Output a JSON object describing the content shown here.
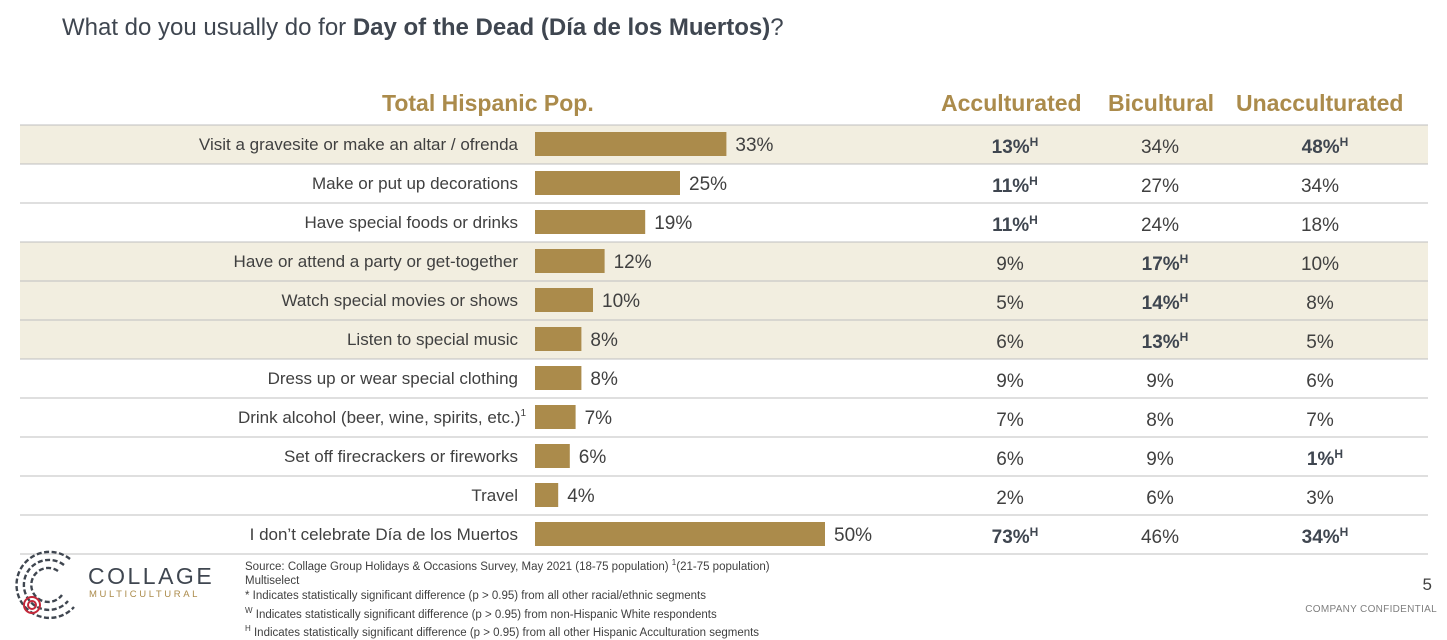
{
  "title": {
    "prefix": "What do you usually do for ",
    "bold": "Day of the Dead (Día de los Muertos)",
    "suffix": "?"
  },
  "headers": {
    "total": "Total Hispanic Pop.",
    "acc": "Acculturated",
    "bic": "Bicultural",
    "unacc": "Unacculturated"
  },
  "colors": {
    "bar": "#ab8b4b",
    "shade": "#f2eee0",
    "gold": "#ab8b4b",
    "text": "#404040",
    "dark": "#3f4650",
    "line": "#bfbfbf"
  },
  "chart_data": {
    "type": "bar",
    "orientation": "horizontal",
    "categories": [
      "Visit a gravesite or make an altar / ofrenda",
      "Make or put up decorations",
      "Have special foods or drinks",
      "Have or attend a party or get-together",
      "Watch special movies or shows",
      "Listen to special music",
      "Dress up or wear special clothing",
      "Drink alcohol (beer, wine, spirits, etc.)",
      "Set off firecrackers or fireworks",
      "Travel",
      "I don’t celebrate Día de los Muertos"
    ],
    "category_superscripts": [
      "",
      "",
      "",
      "",
      "",
      "",
      "",
      "1",
      "",
      "",
      ""
    ],
    "values": [
      33,
      25,
      19,
      12,
      10,
      8,
      8,
      7,
      6,
      4,
      50
    ],
    "value_labels": [
      "33%",
      "25%",
      "19%",
      "12%",
      "10%",
      "8%",
      "8%",
      "7%",
      "6%",
      "4%",
      "50%"
    ],
    "shaded_rows": [
      true,
      false,
      false,
      true,
      true,
      true,
      false,
      false,
      false,
      false,
      false
    ],
    "segments": [
      {
        "name": "Acculturated",
        "labels": [
          "13%",
          "11%",
          "11%",
          "9%",
          "5%",
          "6%",
          "9%",
          "7%",
          "6%",
          "2%",
          "73%"
        ],
        "sig": [
          "H",
          "H",
          "H",
          "",
          "",
          "",
          "",
          "",
          "",
          "",
          "H"
        ]
      },
      {
        "name": "Bicultural",
        "labels": [
          "34%",
          "27%",
          "24%",
          "17%",
          "14%",
          "13%",
          "9%",
          "8%",
          "9%",
          "6%",
          "46%"
        ],
        "sig": [
          "",
          "",
          "",
          "H",
          "H",
          "H",
          "",
          "",
          "",
          "",
          ""
        ]
      },
      {
        "name": "Unacculturated",
        "labels": [
          "48%",
          "34%",
          "18%",
          "10%",
          "8%",
          "5%",
          "6%",
          "7%",
          "1%",
          "3%",
          "34%"
        ],
        "sig": [
          "H",
          "",
          "",
          "",
          "",
          "",
          "",
          "",
          "H",
          "",
          "H"
        ]
      }
    ]
  },
  "notes": {
    "source": "Source: Collage Group Holidays & Occasions Survey, May 2021 (18-75 population) ",
    "source_sup": "1",
    "source_tail": "(21-75 population)",
    "multiselect": "Multiselect",
    "star_mark": "*",
    "star_text": " Indicates statistically significant difference (p > 0.95) from all other racial/ethnic segments",
    "w_mark": "W",
    "w_text": " Indicates statistically significant difference (p > 0.95) from non-Hispanic White respondents",
    "h_mark": "H",
    "h_text": " Indicates statistically significant difference (p > 0.95) from all other Hispanic Acculturation segments"
  },
  "brand": {
    "name": "COLLAGE",
    "sub": "MULTICULTURAL"
  },
  "footer": {
    "page": "5",
    "confidential": "COMPANY CONFIDENTIAL"
  }
}
